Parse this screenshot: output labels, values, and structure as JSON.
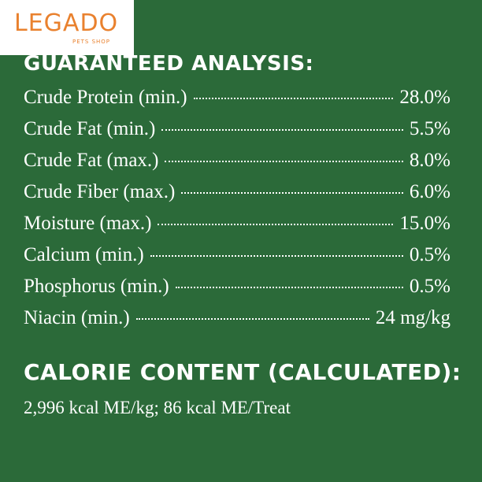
{
  "logo": {
    "name": "LEGADO",
    "tagline": "PETS SHOP"
  },
  "analysis": {
    "title": "GUARANTEED ANALYSIS:",
    "rows": [
      {
        "name": "Crude Protein (min.)",
        "value": "28.0%"
      },
      {
        "name": "Crude Fat (min.)",
        "value": "5.5%"
      },
      {
        "name": "Crude Fat (max.)",
        "value": "8.0%"
      },
      {
        "name": "Crude Fiber (max.)",
        "value": "6.0%"
      },
      {
        "name": "Moisture (max.)",
        "value": "15.0%"
      },
      {
        "name": "Calcium (min.)",
        "value": "0.5%"
      },
      {
        "name": "Phosphorus (min.)",
        "value": "0.5%"
      },
      {
        "name": "Niacin (min.)",
        "value": "24 mg/kg"
      }
    ]
  },
  "calorie": {
    "title": "CALORIE CONTENT (CALCULATED):",
    "text": "2,996 kcal ME/kg; 86 kcal ME/Treat"
  }
}
